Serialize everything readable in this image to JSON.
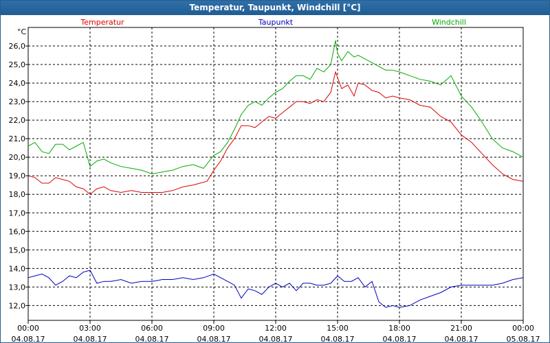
{
  "window": {
    "title": "Temperatur, Taupunkt, Windchill [°C]"
  },
  "chart_data": {
    "type": "line",
    "title": "Temperatur, Taupunkt, Windchill [°C]",
    "ylabel": "°C",
    "xlabel": "",
    "ylim": [
      11.2,
      27.0
    ],
    "y_ticks": [
      12,
      13,
      14,
      15,
      16,
      17,
      18,
      19,
      20,
      21,
      22,
      23,
      24,
      25,
      26
    ],
    "y_tick_labels": [
      "12,0",
      "13,0",
      "14,0",
      "15,0",
      "16,0",
      "17,0",
      "18,0",
      "19,0",
      "20,0",
      "21,0",
      "22,0",
      "23,0",
      "24,0",
      "25,0",
      "26,0"
    ],
    "xlim": [
      0,
      24
    ],
    "x_ticks": [
      0,
      3,
      6,
      9,
      12,
      15,
      18,
      21,
      24
    ],
    "x_tick_labels": [
      [
        "00:00",
        "04.08.17"
      ],
      [
        "03:00",
        "04.08.17"
      ],
      [
        "06:00",
        "04.08.17"
      ],
      [
        "09:00",
        "04.08.17"
      ],
      [
        "12:00",
        "04.08.17"
      ],
      [
        "15:00",
        "04.08.17"
      ],
      [
        "18:00",
        "04.08.17"
      ],
      [
        "21:00",
        "04.08.17"
      ],
      [
        "00:00",
        "05.08.17"
      ]
    ],
    "grid": true,
    "legend": "top",
    "series": [
      {
        "name": "Temperatur",
        "color": "#dd0000",
        "x": [
          0,
          0.33,
          0.67,
          1.0,
          1.33,
          1.67,
          2.0,
          2.33,
          2.67,
          3.0,
          3.33,
          3.67,
          4.0,
          4.5,
          5.0,
          5.5,
          6.0,
          6.5,
          7.0,
          7.5,
          8.0,
          8.33,
          8.67,
          9.0,
          9.33,
          9.67,
          10.0,
          10.33,
          10.67,
          11.0,
          11.33,
          11.67,
          12.0,
          12.33,
          12.67,
          13.0,
          13.33,
          13.67,
          14.0,
          14.33,
          14.67,
          14.9,
          15.0,
          15.2,
          15.5,
          15.8,
          16.0,
          16.33,
          16.67,
          17.0,
          17.33,
          17.67,
          18.0,
          18.5,
          19.0,
          19.5,
          20.0,
          20.5,
          21.0,
          21.5,
          22.0,
          22.5,
          23.0,
          23.5,
          24.0
        ],
        "y": [
          19.0,
          18.9,
          18.6,
          18.6,
          18.9,
          18.8,
          18.7,
          18.4,
          18.3,
          18.0,
          18.3,
          18.4,
          18.2,
          18.1,
          18.2,
          18.1,
          18.1,
          18.1,
          18.2,
          18.4,
          18.5,
          18.6,
          18.7,
          19.3,
          19.8,
          20.5,
          21.0,
          21.7,
          21.7,
          21.6,
          21.9,
          22.2,
          22.1,
          22.4,
          22.7,
          23.0,
          23.0,
          22.9,
          23.1,
          23.0,
          23.5,
          24.6,
          24.3,
          23.7,
          23.9,
          23.3,
          24.0,
          23.9,
          23.6,
          23.5,
          23.2,
          23.3,
          23.2,
          23.1,
          22.8,
          22.7,
          22.2,
          21.9,
          21.2,
          20.8,
          20.2,
          19.6,
          19.1,
          18.8,
          18.7
        ]
      },
      {
        "name": "Taupunkt",
        "color": "#0000bb",
        "x": [
          0,
          0.33,
          0.67,
          1.0,
          1.33,
          1.67,
          2.0,
          2.33,
          2.67,
          3.0,
          3.33,
          3.67,
          4.0,
          4.5,
          5.0,
          5.5,
          6.0,
          6.5,
          7.0,
          7.5,
          8.0,
          8.5,
          9.0,
          9.33,
          9.67,
          10.0,
          10.33,
          10.67,
          11.0,
          11.33,
          11.67,
          12.0,
          12.33,
          12.67,
          13.0,
          13.33,
          13.67,
          14.0,
          14.33,
          14.67,
          15.0,
          15.33,
          15.67,
          16.0,
          16.33,
          16.67,
          17.0,
          17.33,
          17.67,
          18.0,
          18.5,
          19.0,
          19.5,
          20.0,
          20.5,
          21.0,
          21.5,
          22.0,
          22.5,
          23.0,
          23.5,
          24.0
        ],
        "y": [
          13.5,
          13.6,
          13.7,
          13.5,
          13.1,
          13.3,
          13.6,
          13.5,
          13.8,
          13.9,
          13.2,
          13.3,
          13.3,
          13.4,
          13.2,
          13.3,
          13.3,
          13.4,
          13.4,
          13.5,
          13.4,
          13.5,
          13.7,
          13.5,
          13.3,
          13.1,
          12.4,
          12.9,
          12.8,
          12.6,
          13.0,
          13.2,
          13.0,
          13.2,
          12.8,
          13.2,
          13.2,
          13.1,
          13.1,
          13.2,
          13.6,
          13.3,
          13.3,
          13.5,
          13.0,
          13.3,
          12.2,
          11.9,
          12.0,
          11.9,
          12.0,
          12.3,
          12.5,
          12.7,
          13.0,
          13.1,
          13.1,
          13.1,
          13.1,
          13.2,
          13.4,
          13.5
        ]
      },
      {
        "name": "Windchill",
        "color": "#00aa00",
        "x": [
          0,
          0.33,
          0.67,
          1.0,
          1.33,
          1.67,
          2.0,
          2.33,
          2.67,
          3.0,
          3.33,
          3.67,
          4.0,
          4.5,
          5.0,
          5.5,
          6.0,
          6.5,
          7.0,
          7.5,
          8.0,
          8.5,
          9.0,
          9.33,
          9.67,
          10.0,
          10.33,
          10.67,
          11.0,
          11.33,
          11.67,
          12.0,
          12.33,
          12.67,
          13.0,
          13.33,
          13.67,
          14.0,
          14.33,
          14.67,
          14.9,
          15.0,
          15.2,
          15.5,
          15.8,
          16.0,
          16.33,
          16.67,
          17.0,
          17.33,
          17.67,
          18.0,
          18.5,
          19.0,
          19.5,
          20.0,
          20.5,
          21.0,
          21.5,
          22.0,
          22.5,
          23.0,
          23.5,
          24.0
        ],
        "y": [
          20.6,
          20.8,
          20.3,
          20.2,
          20.7,
          20.7,
          20.4,
          20.6,
          20.8,
          19.5,
          19.8,
          19.9,
          19.7,
          19.5,
          19.4,
          19.3,
          19.1,
          19.2,
          19.3,
          19.5,
          19.6,
          19.4,
          20.1,
          20.3,
          20.8,
          21.5,
          22.3,
          22.8,
          23.0,
          22.8,
          23.2,
          23.5,
          23.7,
          24.1,
          24.4,
          24.4,
          24.2,
          24.8,
          24.6,
          25.0,
          26.3,
          25.6,
          25.2,
          25.7,
          25.4,
          25.5,
          25.3,
          25.1,
          24.9,
          24.7,
          24.7,
          24.6,
          24.4,
          24.2,
          24.1,
          23.9,
          24.4,
          23.3,
          22.7,
          21.9,
          21.0,
          20.5,
          20.3,
          20.0
        ]
      }
    ]
  }
}
